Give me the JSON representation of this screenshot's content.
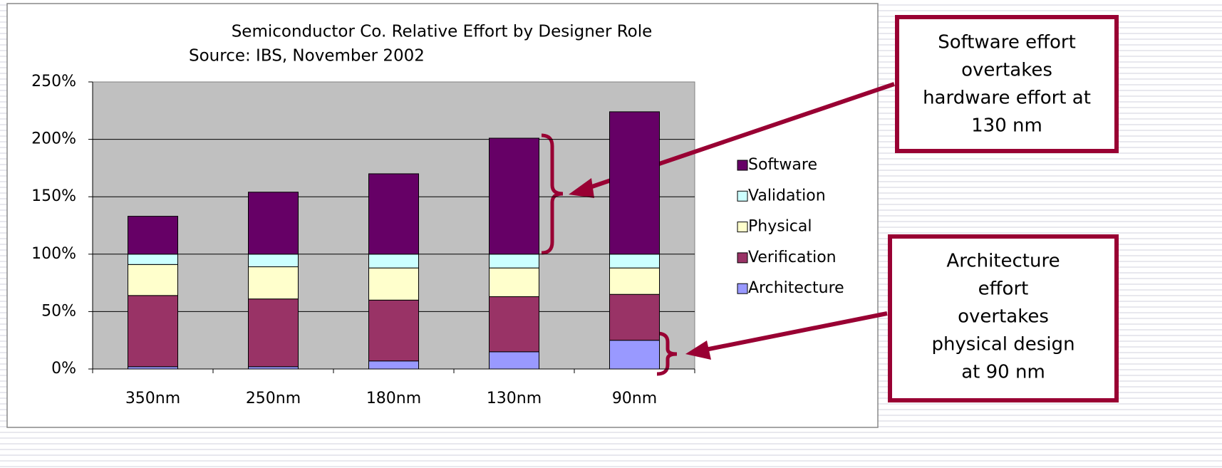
{
  "chart_data": {
    "type": "stacked_bar",
    "title": "Semiconductor Co. Relative Effort by Designer Role",
    "subtitle": "Source:  IBS, November 2002",
    "categories": [
      "350nm",
      "250nm",
      "180nm",
      "130nm",
      "90nm"
    ],
    "series": [
      {
        "name": "Architecture",
        "color": "#9999ff",
        "values": [
          2,
          2,
          7,
          15,
          25
        ]
      },
      {
        "name": "Verification",
        "color": "#993366",
        "values": [
          62,
          59,
          53,
          48,
          40
        ]
      },
      {
        "name": "Physical",
        "color": "#ffffcc",
        "values": [
          27,
          28,
          28,
          25,
          23
        ]
      },
      {
        "name": "Validation",
        "color": "#ccffff",
        "values": [
          9,
          11,
          12,
          12,
          12
        ]
      },
      {
        "name": "Software",
        "color": "#660066",
        "values": [
          33,
          54,
          70,
          101,
          124
        ]
      }
    ],
    "ylim": [
      0,
      250
    ],
    "yticks": [
      {
        "value": 0,
        "label": "0%"
      },
      {
        "value": 50,
        "label": "50%"
      },
      {
        "value": 100,
        "label": "100%"
      },
      {
        "value": 150,
        "label": "150%"
      },
      {
        "value": 200,
        "label": "200%"
      },
      {
        "value": 250,
        "label": "250%"
      }
    ],
    "grid": true,
    "legend": "right",
    "annotations": [
      {
        "lines": [
          "Software effort",
          "overtakes",
          "hardware effort at",
          "130 nm"
        ]
      },
      {
        "lines": [
          "Architecture",
          "effort",
          "overtakes",
          "physical design",
          "at 90 nm"
        ]
      }
    ]
  }
}
